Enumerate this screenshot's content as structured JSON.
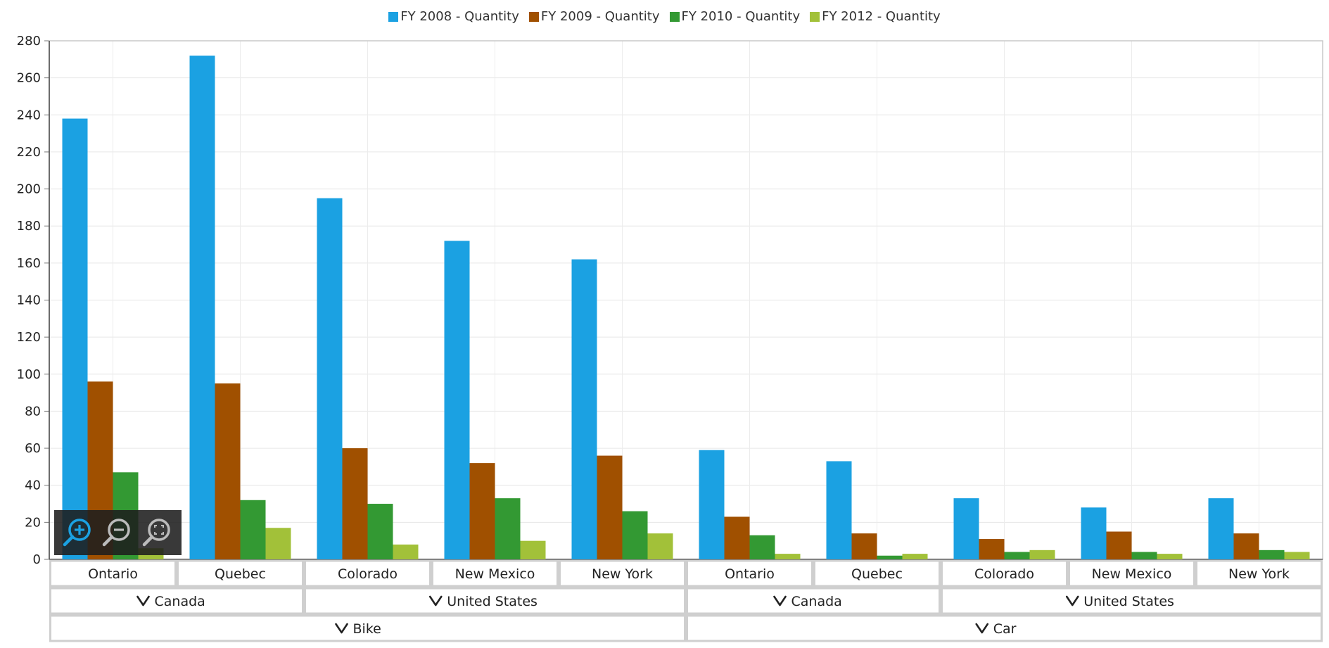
{
  "chart_data": {
    "type": "bar",
    "y_axis": {
      "min": 0,
      "max": 280,
      "step": 20,
      "ticks": [
        0,
        20,
        40,
        60,
        80,
        100,
        120,
        140,
        160,
        180,
        200,
        220,
        240,
        260,
        280
      ]
    },
    "grid": true,
    "legend_position": "top-center",
    "categories": [
      "Ontario",
      "Quebec",
      "Colorado",
      "New Mexico",
      "New York",
      "Ontario",
      "Quebec",
      "Colorado",
      "New Mexico",
      "New York"
    ],
    "group_levels": [
      {
        "level": "country",
        "groups": [
          {
            "label": "Canada",
            "span": 2
          },
          {
            "label": "United States",
            "span": 3
          },
          {
            "label": "Canada",
            "span": 2
          },
          {
            "label": "United States",
            "span": 3
          }
        ]
      },
      {
        "level": "category",
        "groups": [
          {
            "label": "Bike",
            "span": 5
          },
          {
            "label": "Car",
            "span": 5
          }
        ]
      }
    ],
    "series": [
      {
        "name": "FY 2008 - Quantity",
        "color": "#1ba1e2",
        "values": [
          238,
          272,
          195,
          172,
          162,
          59,
          53,
          33,
          28,
          33
        ]
      },
      {
        "name": "FY 2009 - Quantity",
        "color": "#a05000",
        "values": [
          96,
          95,
          60,
          52,
          56,
          23,
          14,
          11,
          15,
          14
        ]
      },
      {
        "name": "FY 2010 - Quantity",
        "color": "#339933",
        "values": [
          47,
          32,
          30,
          33,
          26,
          13,
          2,
          4,
          4,
          5
        ]
      },
      {
        "name": "FY 2012 - Quantity",
        "color": "#a2c139",
        "values": [
          6,
          17,
          8,
          10,
          14,
          3,
          3,
          5,
          3,
          4
        ]
      }
    ]
  },
  "toolbar": {
    "buttons": [
      {
        "name": "zoom-in-icon",
        "active_color": "#1ba1e2"
      },
      {
        "name": "zoom-out-icon",
        "active_color": "#bbbbbb"
      },
      {
        "name": "zoom-reset-icon",
        "active_color": "#bbbbbb"
      }
    ]
  }
}
